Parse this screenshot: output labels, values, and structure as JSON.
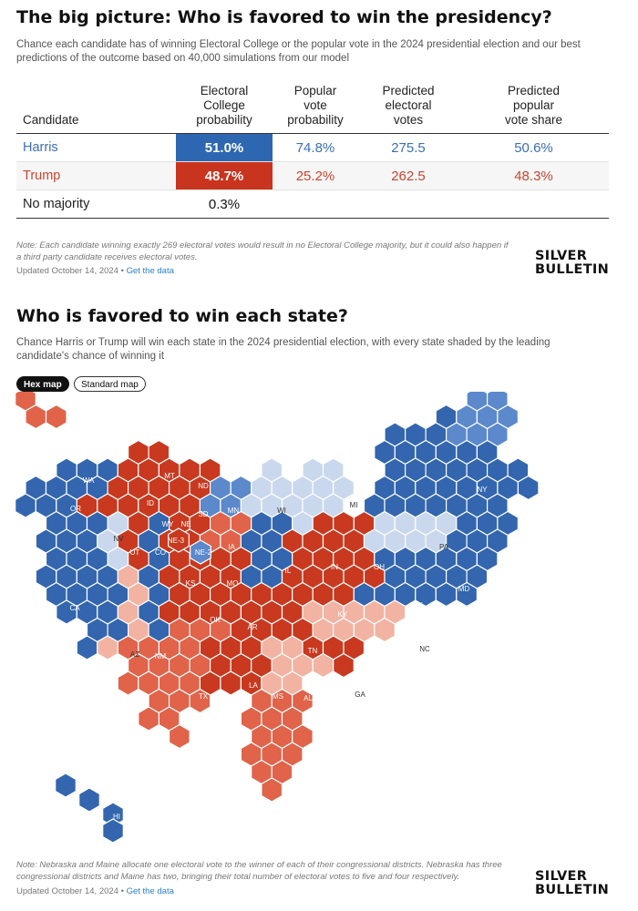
{
  "section1": {
    "title": "The big picture: Who is favored to win the presidency?",
    "subtitle": "Chance each candidate has of winning Electoral College or the popular vote in the 2024 presidential election and our best predictions of the outcome based on 40,000 simulations from our model",
    "headers": {
      "candidate": "Candidate",
      "ec": [
        "Electoral",
        "College",
        "probability"
      ],
      "pop": [
        "Popular",
        "vote",
        "probability"
      ],
      "ev": [
        "Predicted",
        "electoral",
        "votes"
      ],
      "share": [
        "Predicted",
        "popular",
        "vote share"
      ]
    },
    "rows": [
      {
        "name": "Harris",
        "ec": "51.0%",
        "pop": "74.8%",
        "ev": "275.5",
        "share": "50.6%"
      },
      {
        "name": "Trump",
        "ec": "48.7%",
        "pop": "25.2%",
        "ev": "262.5",
        "share": "48.3%"
      },
      {
        "name": "No majority",
        "ec": "0.3%",
        "pop": "",
        "ev": "",
        "share": ""
      }
    ],
    "note": "Note: Each candidate winning exactly 269 electoral votes would result in no Electoral College majority, but it could also happen if a third party candidate receives electoral votes.",
    "updated": "Updated October 14, 2024 •",
    "link": "Get the data"
  },
  "logo": {
    "line1": "SILVER",
    "line2": "BULLETIN"
  },
  "section2": {
    "title": "Who is favored to win each state?",
    "subtitle": "Chance Harris or Trump will win each state in the 2024 presidential election, with every state shaded by the leading candidate's chance of winning it",
    "toggle_active": "Hex map",
    "toggle_inactive": "Standard map",
    "note": "Note: Nebraska and Maine allocate one electoral vote to the winner of each of their congressional districts. Nebraska has three congressional districts and Maine has two, bringing their total number of electoral votes to five and four respectively.",
    "updated": "Updated October 14, 2024 •",
    "link": "Get the data"
  },
  "colors": {
    "safe_dem": "#3366ae",
    "likely_dem": "#5b89cb",
    "lean_dem": "#cad8ee",
    "safe_rep": "#c8391f",
    "likely_rep": "#e0634a",
    "lean_rep": "#f2b3a2",
    "harris_row": "#2e67b1",
    "trump_row": "#c9341e"
  },
  "chart_data": {
    "type": "hex-map",
    "states": [
      {
        "code": "AK",
        "rating": "likely_rep"
      },
      {
        "code": "ME",
        "rating": "likely_dem"
      },
      {
        "code": "VT",
        "rating": "safe_dem"
      },
      {
        "code": "NH",
        "rating": "likely_dem"
      },
      {
        "code": "MA",
        "rating": "safe_dem"
      },
      {
        "code": "RI",
        "rating": "safe_dem"
      },
      {
        "code": "CT",
        "rating": "safe_dem"
      },
      {
        "code": "NY",
        "rating": "safe_dem"
      },
      {
        "code": "NJ",
        "rating": "safe_dem"
      },
      {
        "code": "PA",
        "rating": "lean_dem"
      },
      {
        "code": "DE",
        "rating": "safe_dem"
      },
      {
        "code": "MD",
        "rating": "safe_dem"
      },
      {
        "code": "DC",
        "rating": "safe_dem"
      },
      {
        "code": "VA",
        "rating": "safe_dem"
      },
      {
        "code": "WV",
        "rating": "safe_rep"
      },
      {
        "code": "OH",
        "rating": "safe_rep"
      },
      {
        "code": "MI",
        "rating": "lean_dem"
      },
      {
        "code": "IN",
        "rating": "safe_rep"
      },
      {
        "code": "KY",
        "rating": "safe_rep"
      },
      {
        "code": "NC",
        "rating": "lean_rep"
      },
      {
        "code": "SC",
        "rating": "safe_rep"
      },
      {
        "code": "GA",
        "rating": "lean_rep"
      },
      {
        "code": "FL",
        "rating": "likely_rep"
      },
      {
        "code": "TN",
        "rating": "safe_rep"
      },
      {
        "code": "AL",
        "rating": "safe_rep"
      },
      {
        "code": "MS",
        "rating": "safe_rep"
      },
      {
        "code": "LA",
        "rating": "safe_rep"
      },
      {
        "code": "AR",
        "rating": "safe_rep"
      },
      {
        "code": "TX",
        "rating": "likely_rep"
      },
      {
        "code": "OK",
        "rating": "safe_rep"
      },
      {
        "code": "MO",
        "rating": "safe_rep"
      },
      {
        "code": "IL",
        "rating": "safe_dem"
      },
      {
        "code": "WI",
        "rating": "lean_dem"
      },
      {
        "code": "MN",
        "rating": "likely_dem"
      },
      {
        "code": "IA",
        "rating": "likely_rep"
      },
      {
        "code": "KS",
        "rating": "safe_rep"
      },
      {
        "code": "NE",
        "rating": "safe_rep"
      },
      {
        "code": "NE-2",
        "rating": "likely_dem"
      },
      {
        "code": "NE-3",
        "rating": "safe_rep"
      },
      {
        "code": "SD",
        "rating": "safe_rep"
      },
      {
        "code": "ND",
        "rating": "safe_rep"
      },
      {
        "code": "MT",
        "rating": "safe_rep"
      },
      {
        "code": "WY",
        "rating": "safe_rep"
      },
      {
        "code": "CO",
        "rating": "safe_dem"
      },
      {
        "code": "NM",
        "rating": "safe_dem"
      },
      {
        "code": "AZ",
        "rating": "lean_rep"
      },
      {
        "code": "UT",
        "rating": "safe_rep"
      },
      {
        "code": "ID",
        "rating": "safe_rep"
      },
      {
        "code": "NV",
        "rating": "lean_dem"
      },
      {
        "code": "WA",
        "rating": "safe_dem"
      },
      {
        "code": "OR",
        "rating": "safe_dem"
      },
      {
        "code": "CA",
        "rating": "safe_dem"
      },
      {
        "code": "HI",
        "rating": "safe_dem"
      }
    ]
  }
}
